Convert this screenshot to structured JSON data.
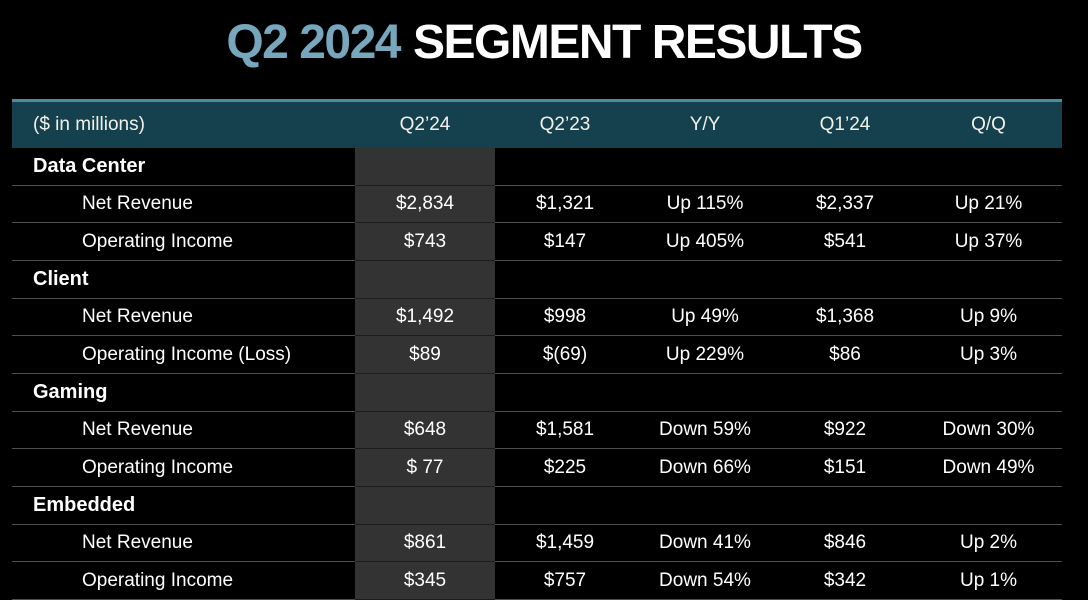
{
  "title": {
    "highlight": "Q2 2024",
    "rest": "SEGMENT RESULTS"
  },
  "colors": {
    "background": "#000000",
    "header_band": "#15414e",
    "header_top_border": "#4d8ba0",
    "title_highlight_blue": "#76a7bd",
    "highlight_column_bg": "#333333",
    "row_divider": "#4f4f4f",
    "row_divider_in_highlight": "#1d1d1d",
    "text": "#ffffff"
  },
  "chart_data": {
    "type": "table",
    "title": "Q2 2024 SEGMENT RESULTS",
    "columns": [
      "($ in millions)",
      "Q2’24",
      "Q2’23",
      "Y/Y",
      "Q1’24",
      "Q/Q"
    ],
    "highlighted_column": "Q2’24",
    "sections": [
      {
        "name": "Data Center",
        "rows": [
          {
            "label": "Net Revenue",
            "values": [
              "$2,834",
              "$1,321",
              "Up 115%",
              "$2,337",
              "Up 21%"
            ]
          },
          {
            "label": "Operating Income",
            "values": [
              "$743",
              "$147",
              "Up 405%",
              "$541",
              "Up 37%"
            ]
          }
        ]
      },
      {
        "name": "Client",
        "rows": [
          {
            "label": "Net Revenue",
            "values": [
              "$1,492",
              "$998",
              "Up 49%",
              "$1,368",
              "Up 9%"
            ]
          },
          {
            "label": "Operating Income (Loss)",
            "values": [
              "$89",
              "$(69)",
              "Up 229%",
              "$86",
              "Up 3%"
            ]
          }
        ]
      },
      {
        "name": "Gaming",
        "rows": [
          {
            "label": "Net Revenue",
            "values": [
              "$648",
              "$1,581",
              "Down 59%",
              "$922",
              "Down 30%"
            ]
          },
          {
            "label": "Operating Income",
            "values": [
              "$ 77",
              "$225",
              "Down 66%",
              "$151",
              "Down 49%"
            ]
          }
        ]
      },
      {
        "name": "Embedded",
        "rows": [
          {
            "label": "Net Revenue",
            "values": [
              "$861",
              "$1,459",
              "Down 41%",
              "$846",
              "Up 2%"
            ]
          },
          {
            "label": "Operating Income",
            "values": [
              "$345",
              "$757",
              "Down 54%",
              "$342",
              "Up 1%"
            ]
          }
        ]
      }
    ]
  }
}
